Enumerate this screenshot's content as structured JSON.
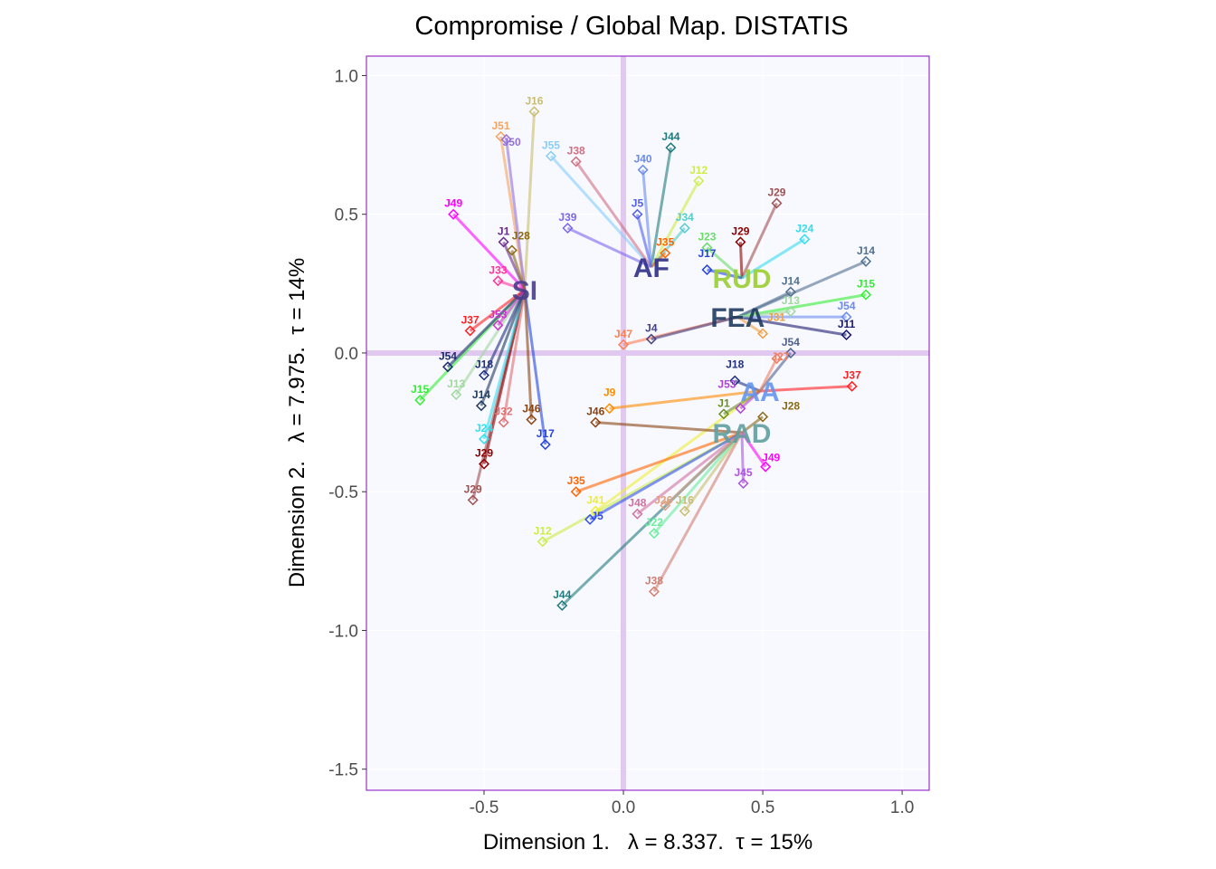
{
  "chart_data": {
    "type": "scatter",
    "title": "Compromise / Global Map. DISTATIS",
    "xlabel": "Dimension 1.   λ = 8.337.  τ = 15%",
    "ylabel": "Dimension 2.   λ = 7.975.  τ = 14%",
    "xlim": [
      -0.922,
      1.097
    ],
    "ylim": [
      -1.576,
      1.07
    ],
    "xticks": [
      "-0.5",
      "0.0",
      "0.5",
      "1.0"
    ],
    "xtick_values": [
      -0.5,
      0.0,
      0.5,
      1.0
    ],
    "yticks": [
      "1.0",
      "0.5",
      "0.0",
      "-0.5",
      "-1.0",
      "-1.5"
    ],
    "ytick_values": [
      1.0,
      0.5,
      0.0,
      -0.5,
      -1.0,
      -1.5
    ],
    "grid": true,
    "colors": {
      "panel_bg": "#F8F8FF",
      "border": "#9932CC",
      "origin_lines": "#E0C8F0",
      "grid": "#FFFFFF"
    },
    "categories": [
      {
        "label": "SI",
        "x": -0.354,
        "y": 0.228,
        "color": "#483D8B"
      },
      {
        "label": "AF",
        "x": 0.1,
        "y": 0.31,
        "color": "#2E2E8A"
      },
      {
        "label": "RUD",
        "x": 0.425,
        "y": 0.27,
        "color": "#9ACD32"
      },
      {
        "label": "FEA",
        "x": 0.41,
        "y": 0.13,
        "color": "#1F3A5F"
      },
      {
        "label": "AA",
        "x": 0.49,
        "y": -0.137,
        "color": "#6495ED"
      },
      {
        "label": "RAD",
        "x": 0.425,
        "y": -0.287,
        "color": "#5F9EA0"
      }
    ],
    "partial_points": [
      {
        "label": "J16",
        "x": -0.32,
        "y": 0.87,
        "cat": 0,
        "color": "#C8BE6E"
      },
      {
        "label": "J51",
        "x": -0.44,
        "y": 0.78,
        "cat": 0,
        "color": "#F4A460"
      },
      {
        "label": "J50",
        "x": -0.42,
        "y": 0.77,
        "cat": 0,
        "color": "#9370DB"
      },
      {
        "label": "J55",
        "x": -0.26,
        "y": 0.71,
        "cat": 1,
        "color": "#87CEFA"
      },
      {
        "label": "J38",
        "x": -0.17,
        "y": 0.69,
        "cat": 1,
        "color": "#D07080"
      },
      {
        "label": "J44",
        "x": 0.17,
        "y": 0.74,
        "cat": 1,
        "color": "#1E7B7B"
      },
      {
        "label": "J40",
        "x": 0.07,
        "y": 0.66,
        "cat": 1,
        "color": "#6A8AEE"
      },
      {
        "label": "J12",
        "x": 0.27,
        "y": 0.62,
        "cat": 1,
        "color": "#CCEE44"
      },
      {
        "label": "J34",
        "x": 0.22,
        "y": 0.45,
        "cat": 1,
        "color": "#55CCCC"
      },
      {
        "label": "J49",
        "x": -0.61,
        "y": 0.5,
        "cat": 0,
        "color": "#FF00FF"
      },
      {
        "label": "J29",
        "x": 0.55,
        "y": 0.54,
        "cat": 2,
        "color": "#A05050"
      },
      {
        "label": "J29",
        "x": 0.42,
        "y": 0.4,
        "cat": 2,
        "color": "#8B0000"
      },
      {
        "label": "J24",
        "x": 0.65,
        "y": 0.41,
        "cat": 2,
        "color": "#33DDEE"
      },
      {
        "label": "J14",
        "x": 0.87,
        "y": 0.33,
        "cat": 3,
        "color": "#50708F"
      },
      {
        "label": "J15",
        "x": 0.87,
        "y": 0.21,
        "cat": 3,
        "color": "#33EE33"
      },
      {
        "label": "J14",
        "x": 0.6,
        "y": 0.22,
        "cat": 3,
        "color": "#50708F"
      },
      {
        "label": "J54",
        "x": 0.8,
        "y": 0.13,
        "cat": 3,
        "color": "#6A8AEE"
      },
      {
        "label": "J11",
        "x": 0.8,
        "y": 0.065,
        "cat": 3,
        "color": "#1A1A6E"
      },
      {
        "label": "J37",
        "x": 0.82,
        "y": -0.12,
        "cat": 4,
        "color": "#FF2020"
      },
      {
        "label": "J54",
        "x": 0.6,
        "y": 0.0,
        "cat": 4,
        "color": "#50608F"
      },
      {
        "label": "J28",
        "x": 0.5,
        "y": -0.23,
        "cat": 5,
        "color": "#8B6914"
      },
      {
        "label": "J49",
        "x": 0.51,
        "y": -0.41,
        "cat": 5,
        "color": "#FF00FF"
      },
      {
        "label": "J45",
        "x": 0.43,
        "y": -0.47,
        "cat": 5,
        "color": "#AA55DD"
      },
      {
        "label": "J16",
        "x": 0.22,
        "y": -0.57,
        "cat": 5,
        "color": "#C8BE6E"
      },
      {
        "label": "J22",
        "x": 0.11,
        "y": -0.65,
        "cat": 5,
        "color": "#66EE99"
      },
      {
        "label": "J38",
        "x": 0.11,
        "y": -0.86,
        "cat": 5,
        "color": "#D08070"
      },
      {
        "label": "J41",
        "x": -0.1,
        "y": -0.57,
        "cat": 4,
        "color": "#EEEE33"
      },
      {
        "label": "J44",
        "x": -0.22,
        "y": -0.91,
        "cat": 5,
        "color": "#1E7B7B"
      },
      {
        "label": "J12",
        "x": -0.29,
        "y": -0.68,
        "cat": 5,
        "color": "#CCEE44"
      },
      {
        "label": "J29",
        "x": -0.54,
        "y": -0.53,
        "cat": 0,
        "color": "#A05050"
      },
      {
        "label": "J29",
        "x": -0.5,
        "y": -0.4,
        "cat": 0,
        "color": "#8B0000"
      },
      {
        "label": "J24",
        "x": -0.5,
        "y": -0.31,
        "cat": 0,
        "color": "#33DDEE"
      },
      {
        "label": "J17",
        "x": -0.28,
        "y": -0.33,
        "cat": 0,
        "color": "#2244DD"
      },
      {
        "label": "J32",
        "x": -0.43,
        "y": -0.25,
        "cat": 0,
        "color": "#E07070"
      },
      {
        "label": "J46",
        "x": -0.33,
        "y": -0.24,
        "cat": 0,
        "color": "#8B4513"
      },
      {
        "label": "J15",
        "x": -0.73,
        "y": -0.17,
        "cat": 0,
        "color": "#33EE33"
      },
      {
        "label": "J14",
        "x": -0.51,
        "y": -0.19,
        "cat": 0,
        "color": "#1F3A5F"
      },
      {
        "label": "J13",
        "x": -0.6,
        "y": -0.15,
        "cat": 0,
        "color": "#A0D8A0"
      },
      {
        "label": "J54",
        "x": -0.63,
        "y": -0.05,
        "cat": 0,
        "color": "#1A2A6E"
      },
      {
        "label": "J18",
        "x": -0.5,
        "y": -0.08,
        "cat": 0,
        "color": "#203080"
      },
      {
        "label": "J37",
        "x": -0.55,
        "y": 0.08,
        "cat": 0,
        "color": "#FF2020"
      },
      {
        "label": "J53",
        "x": -0.45,
        "y": 0.1,
        "cat": 0,
        "color": "#CC33CC"
      },
      {
        "label": "J1",
        "x": 0.36,
        "y": -0.22,
        "cat": 4,
        "color": "#6B8E23"
      },
      {
        "label": "J53",
        "x": 0.42,
        "y": -0.2,
        "cat": 4,
        "color": "#B040E0"
      },
      {
        "label": "J18",
        "x": 0.4,
        "y": -0.1,
        "cat": 4,
        "color": "#203080"
      },
      {
        "label": "J27",
        "x": 0.55,
        "y": -0.02,
        "cat": 4,
        "color": "#F08060"
      },
      {
        "label": "J31",
        "x": 0.5,
        "y": 0.07,
        "cat": 3,
        "color": "#F0A040"
      },
      {
        "label": "J13",
        "x": 0.6,
        "y": 0.15,
        "cat": 3,
        "color": "#A0D8A0"
      },
      {
        "label": "J23",
        "x": 0.3,
        "y": 0.38,
        "cat": 2,
        "color": "#66DD66"
      },
      {
        "label": "J17",
        "x": 0.3,
        "y": 0.3,
        "cat": 2,
        "color": "#2244DD"
      },
      {
        "label": "J35",
        "x": 0.15,
        "y": 0.36,
        "cat": 1,
        "color": "#FF6600"
      },
      {
        "label": "J5",
        "x": 0.05,
        "y": 0.5,
        "cat": 1,
        "color": "#5060EE"
      },
      {
        "label": "J1",
        "x": -0.43,
        "y": 0.4,
        "cat": 0,
        "color": "#6B2E8E"
      },
      {
        "label": "J28",
        "x": -0.4,
        "y": 0.37,
        "cat": 0,
        "color": "#8B6914"
      },
      {
        "label": "J39",
        "x": -0.2,
        "y": 0.45,
        "cat": 1,
        "color": "#7B68EE"
      },
      {
        "label": "J33",
        "x": -0.45,
        "y": 0.26,
        "cat": 0,
        "color": "#FF3399"
      },
      {
        "label": "J46",
        "x": -0.1,
        "y": -0.25,
        "cat": 5,
        "color": "#8B4513"
      },
      {
        "label": "J9",
        "x": -0.05,
        "y": -0.2,
        "cat": 4,
        "color": "#FF8C00"
      },
      {
        "label": "J47",
        "x": 0.0,
        "y": 0.03,
        "cat": 3,
        "color": "#FF7F50"
      },
      {
        "label": "J4",
        "x": 0.1,
        "y": 0.05,
        "cat": 3,
        "color": "#444488"
      },
      {
        "label": "J35",
        "x": -0.17,
        "y": -0.5,
        "cat": 5,
        "color": "#FF6600"
      },
      {
        "label": "J5",
        "x": -0.12,
        "y": -0.6,
        "cat": 5,
        "color": "#3050EE"
      },
      {
        "label": "J48",
        "x": 0.05,
        "y": -0.58,
        "cat": 5,
        "color": "#D070A0"
      },
      {
        "label": "J26",
        "x": 0.15,
        "y": -0.55,
        "cat": 5,
        "color": "#E0A080"
      }
    ]
  }
}
